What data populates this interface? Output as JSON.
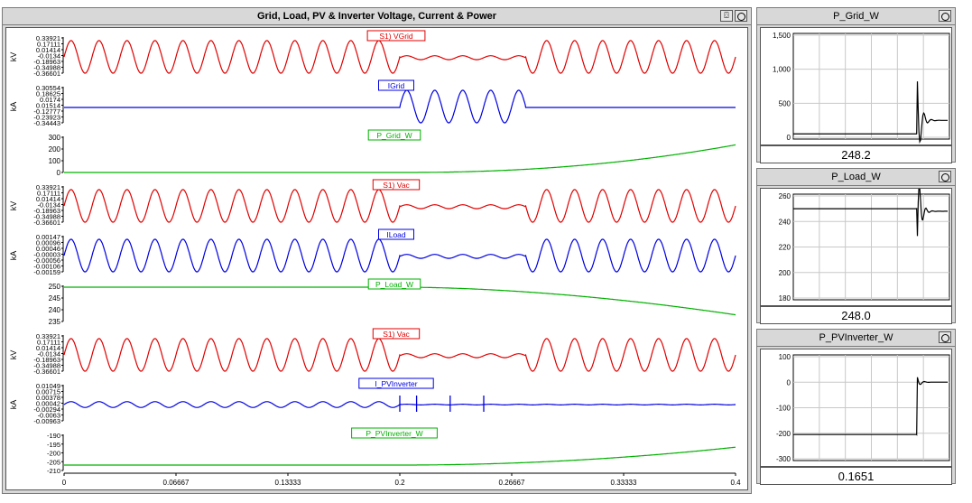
{
  "main_panel": {
    "title": "Grid, Load, PV & Inverter Voltage, Current & Power",
    "rows": [
      {
        "unit": "kV",
        "label": "S1) VGrid",
        "color": "#e00000",
        "kind": "sine_cut",
        "ticks": [
          "0.33921",
          "0.17111",
          "0.01414",
          "-0.0134",
          "-0.18963",
          "-0.34988",
          "-0.36601"
        ]
      },
      {
        "unit": "kA",
        "label": "IGrid",
        "color": "#0000e0",
        "kind": "sine_mid",
        "ticks": [
          "0.30554",
          "0.18625",
          "0.0174",
          "0.01514",
          "-0.12777",
          "-0.23923",
          "-0.34443"
        ]
      },
      {
        "unit": "",
        "label": "P_Grid_W",
        "color": "#00b000",
        "kind": "ramp_up",
        "ticks": [
          "300",
          "200",
          "100",
          "0"
        ]
      },
      {
        "unit": "kV",
        "label": "S1) Vac",
        "color": "#e00000",
        "kind": "sine_cut",
        "ticks": [
          "0.33921",
          "0.17111",
          "0.01414",
          "-0.0134",
          "-0.18963",
          "-0.34988",
          "-0.36601"
        ]
      },
      {
        "unit": "kA",
        "label": "ILoad",
        "color": "#0000e0",
        "kind": "sine_cut",
        "ticks": [
          "0.00147",
          "0.00096",
          "0.00046",
          "-0.00003",
          "-0.00056",
          "-0.00106",
          "-0.00159"
        ]
      },
      {
        "unit": "",
        "label": "P_Load_W",
        "color": "#00b000",
        "kind": "ramp_down",
        "ticks": [
          "250",
          "245",
          "240",
          "235"
        ]
      },
      {
        "unit": "kV",
        "label": "S1) Vac",
        "color": "#e00000",
        "kind": "sine_cut",
        "ticks": [
          "0.33921",
          "0.17111",
          "0.01414",
          "-0.0134",
          "-0.18963",
          "-0.34988",
          "-0.36601"
        ]
      },
      {
        "unit": "kA",
        "label": "I_PVInverter",
        "color": "#0000e0",
        "kind": "spiky",
        "ticks": [
          "0.01049",
          "0.00715",
          "0.00378",
          "0.00042",
          "-0.00294",
          "-0.0063",
          "-0.00963"
        ]
      },
      {
        "unit": "",
        "label": "P_PVInverter_W",
        "color": "#00b000",
        "kind": "ramp_up_neg",
        "ticks": [
          "-190",
          "-195",
          "-200",
          "-205",
          "-210"
        ]
      }
    ],
    "x_ticks": [
      "0",
      "0.06667",
      "0.13333",
      "0.2",
      "0.26667",
      "0.33333",
      "0.4"
    ],
    "x_range": [
      0,
      0.4
    ]
  },
  "meters": [
    {
      "title": "P_Grid_W",
      "value": "248.2",
      "yticks": [
        "1,500",
        "1,000",
        "500",
        "0"
      ],
      "ylim": [
        0,
        1500
      ],
      "final": 248.2,
      "start": 50,
      "kind": "spike_up"
    },
    {
      "title": "P_Load_W",
      "value": "248.0",
      "yticks": [
        "260",
        "240",
        "220",
        "200",
        "180"
      ],
      "ylim": [
        180,
        260
      ],
      "final": 248.0,
      "start": 250,
      "kind": "dip"
    },
    {
      "title": "P_PVInverter_W",
      "value": "0.1651",
      "yticks": [
        "100",
        "0",
        "-100",
        "-200",
        "-300"
      ],
      "ylim": [
        -300,
        100
      ],
      "final": 0.1651,
      "start": -205,
      "kind": "step_up"
    }
  ],
  "icons": {
    "camera": "snapshot-icon",
    "circle": "options-circle-icon"
  }
}
